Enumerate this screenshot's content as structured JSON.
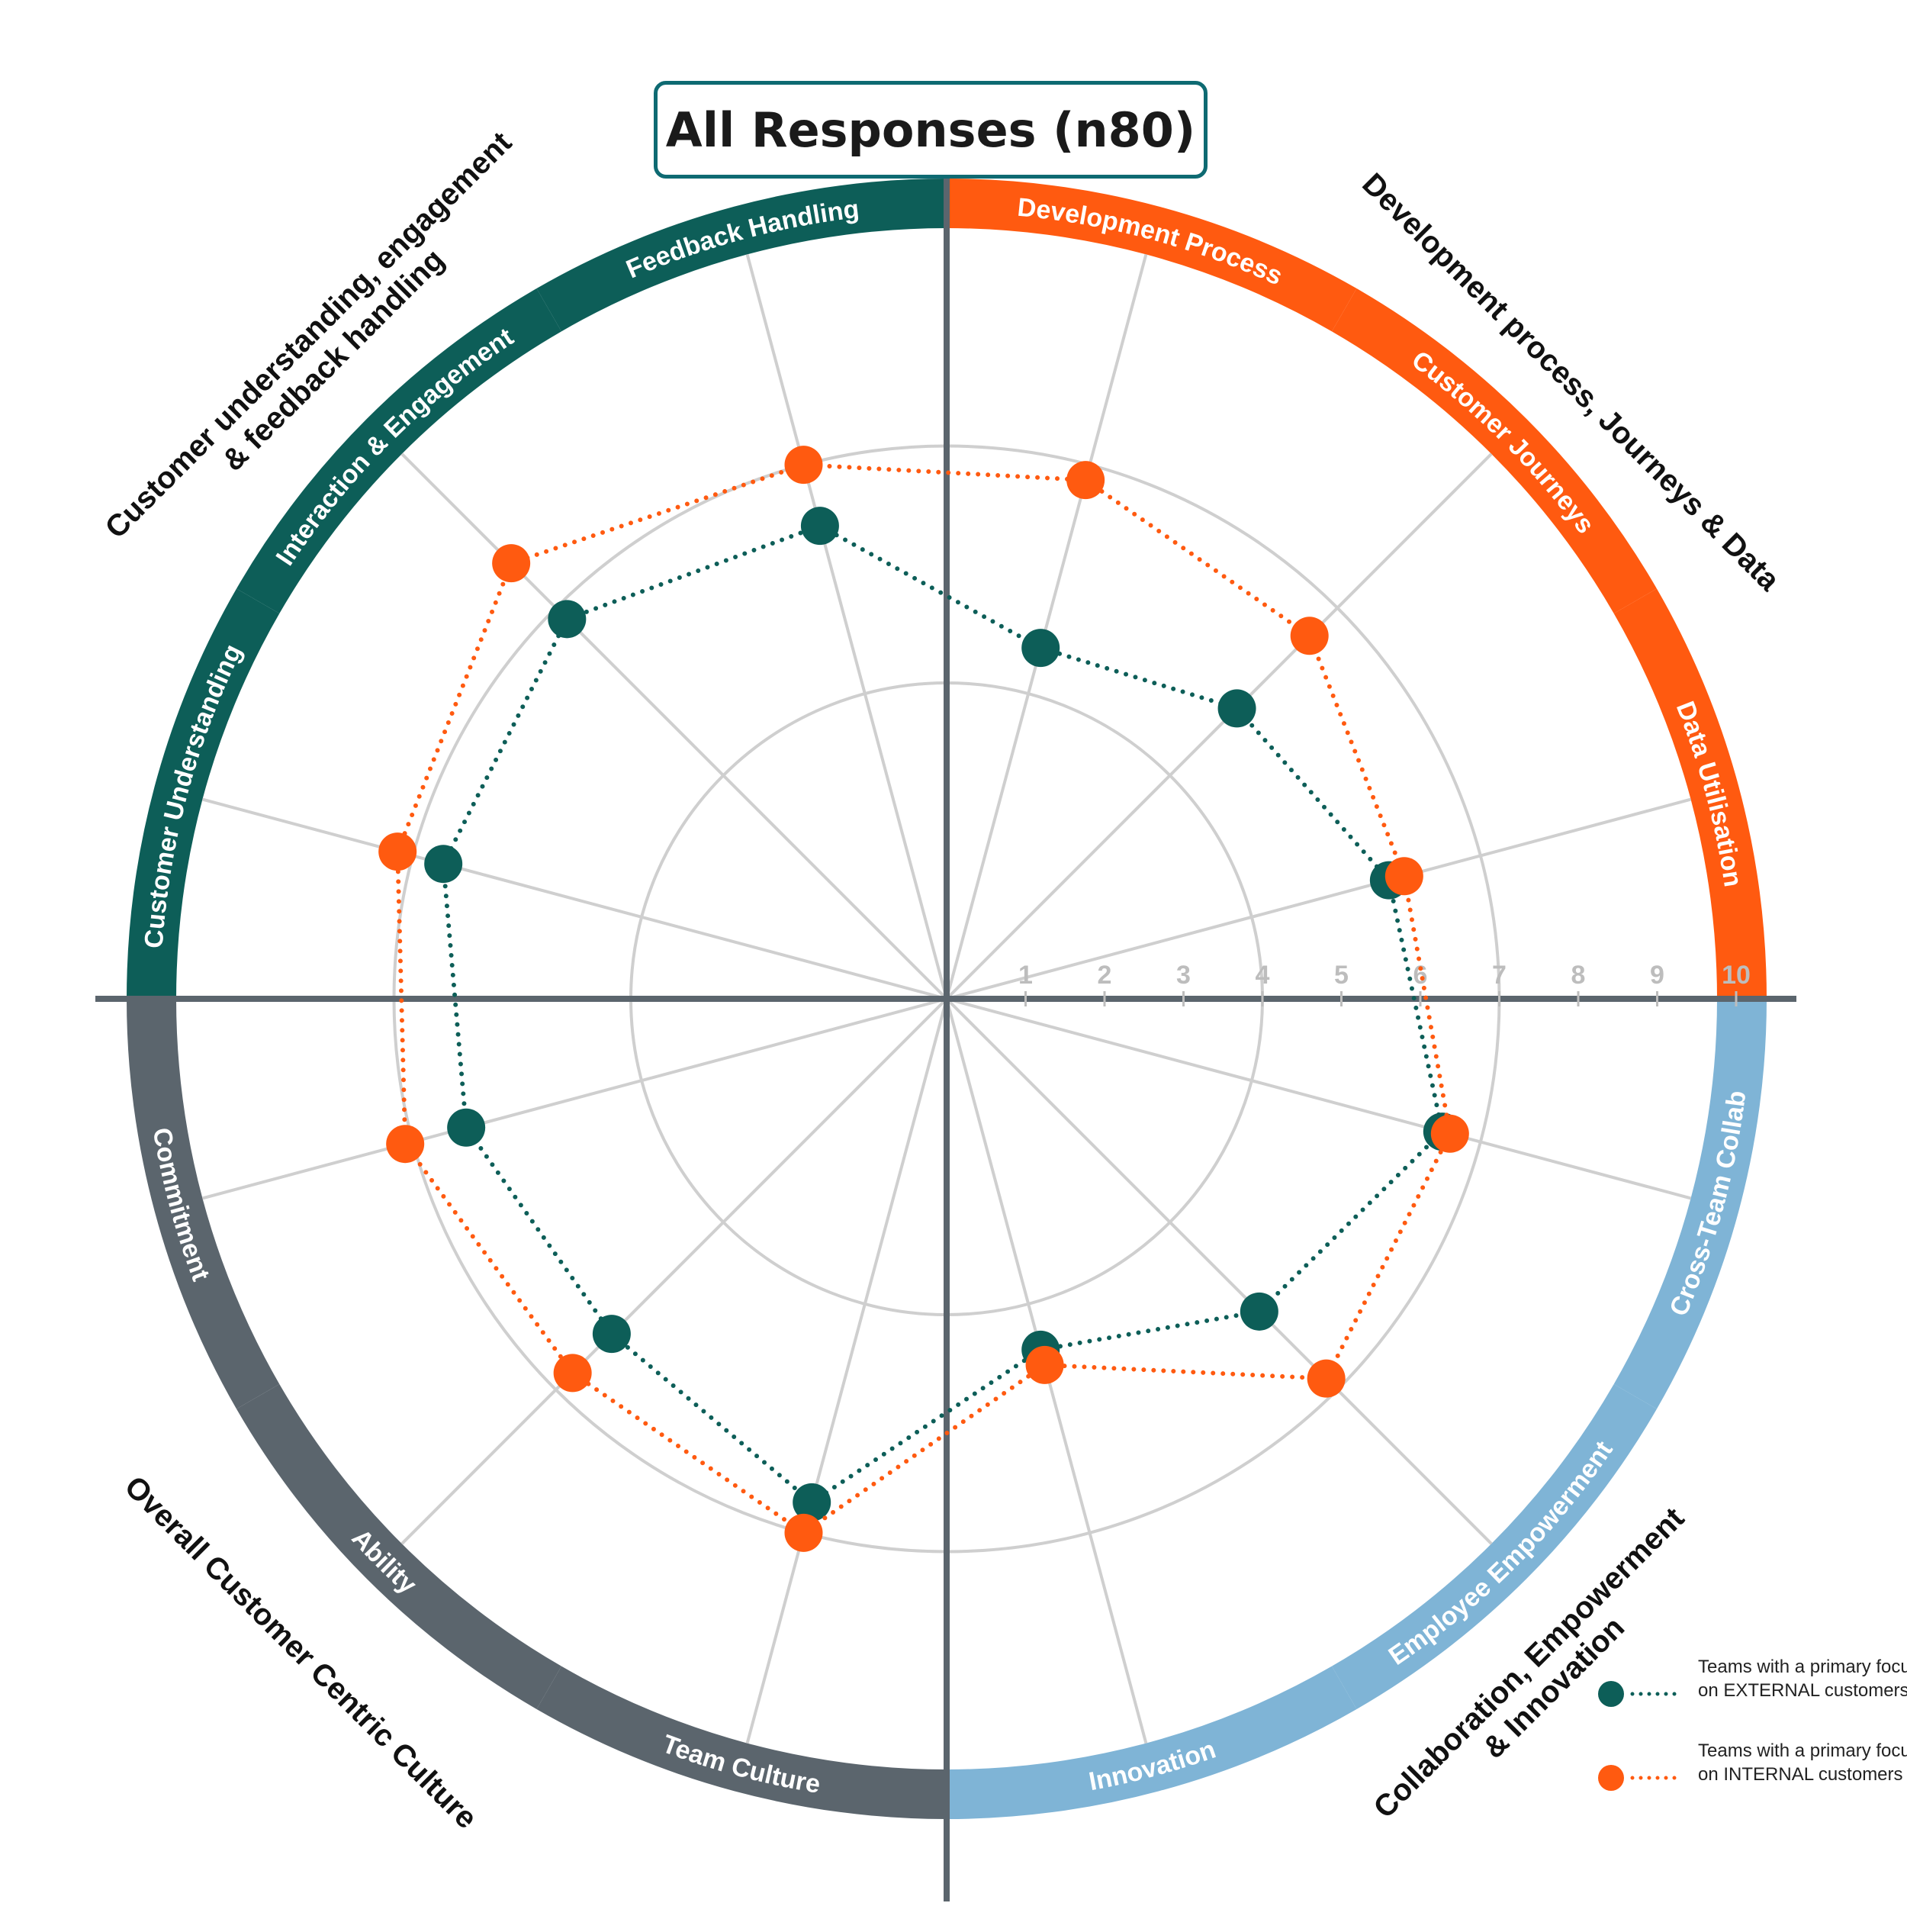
{
  "title": "All Responses (n80)",
  "chart_data": {
    "type": "radar",
    "rmax": 10,
    "ticks": [
      "1",
      "2",
      "3",
      "4",
      "5",
      "6",
      "7",
      "8",
      "9",
      "10"
    ],
    "grid_rings": [
      4,
      7
    ],
    "axes": [
      "Development Process",
      "Customer Journeys",
      "Data Utilisation",
      "Cross-Team Collab",
      "Employee Empowerment",
      "Innovation",
      "Team Culture",
      "Ability",
      "Commitment",
      "Customer Understanding",
      "Interaction & Engagement",
      "Feedback Handling"
    ],
    "series": [
      {
        "name": "Teams with a primary focus on EXTERNAL customers",
        "values": [
          4.6,
          5.2,
          5.8,
          6.5,
          5.6,
          4.6,
          6.6,
          6.0,
          6.3,
          6.6,
          6.8,
          6.2
        ],
        "color": "#0d5e58"
      },
      {
        "name": "Teams with a primary focus on INTERNAL customers",
        "values": [
          6.8,
          6.5,
          6.0,
          6.6,
          6.8,
          4.8,
          7.0,
          6.7,
          7.1,
          7.2,
          7.8,
          7.0
        ],
        "color": "#ff5a10"
      }
    ]
  },
  "segments": [
    {
      "label": "Development Process",
      "color": "#ff5a10"
    },
    {
      "label": "Customer Journeys",
      "color": "#ff5a10"
    },
    {
      "label": "Data Utilisation",
      "color": "#ff5a10"
    },
    {
      "label": "Cross-Team Collab",
      "color": "#7fb4d6"
    },
    {
      "label": "Employee Empowerment",
      "color": "#7fb4d6"
    },
    {
      "label": "Innovation",
      "color": "#7fb4d6"
    },
    {
      "label": "Team Culture",
      "color": "#5b656d"
    },
    {
      "label": "Ability",
      "color": "#5b656d"
    },
    {
      "label": "Commitment",
      "color": "#5b656d"
    },
    {
      "label": "Customer Understanding",
      "color": "#0d5e58"
    },
    {
      "label": "Interaction & Engagement",
      "color": "#0d5e58"
    },
    {
      "label": "Feedback Handling",
      "color": "#0d5e58"
    }
  ],
  "groups": [
    {
      "lines": [
        "Development process, Journeys & Data"
      ]
    },
    {
      "lines": [
        "Collaboration, Empowerment",
        "& Innovation"
      ]
    },
    {
      "lines": [
        "Overall Customer Centric Culture"
      ]
    },
    {
      "lines": [
        "Customer understanding, engagement",
        "& feedback handling"
      ]
    }
  ]
}
